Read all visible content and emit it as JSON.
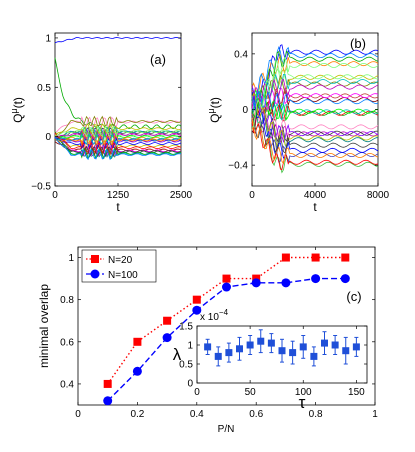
{
  "chart_data": [
    {
      "panel": "a",
      "type": "line",
      "panel_label": "(a)",
      "xlabel": "t",
      "ylabel": "Q",
      "ylabel_sup": "μ",
      "ylabel_suffix": "(t)",
      "xlim": [
        0,
        2500
      ],
      "ylim": [
        -0.5,
        1.05
      ],
      "xticks": [
        0,
        1250,
        2500
      ],
      "yticks": [
        -0.5,
        0,
        0.5,
        1
      ],
      "ytick_labels": [
        "−0.5",
        "0",
        "0.5",
        "1"
      ],
      "grid": false,
      "description_note": "many colored overlap trajectories; one (blue) rises to ~1, another (green) decays from ~0.75 to ~0.1, rest fluctuate within about -0.2..0.2",
      "series_count": 30
    },
    {
      "panel": "b",
      "type": "line",
      "panel_label": "(b)",
      "xlabel": "t",
      "ylabel": "Q",
      "ylabel_sup": "μ",
      "ylabel_suffix": "(t)",
      "xlim": [
        0,
        8000
      ],
      "ylim": [
        -0.55,
        0.55
      ],
      "xticks": [
        0,
        4000,
        8000
      ],
      "yticks": [
        -0.4,
        0,
        0.4
      ],
      "ytick_labels": [
        "−0.4",
        "0",
        "0.4"
      ],
      "grid": false,
      "series_count": 30
    },
    {
      "panel": "c",
      "type": "line",
      "panel_label": "(c)",
      "xlabel": "P/N",
      "ylabel": "minimal overlap",
      "xlim": [
        0,
        1
      ],
      "ylim": [
        0.3,
        1.05
      ],
      "xticks": [
        0,
        0.2,
        0.4,
        0.6,
        0.8,
        1
      ],
      "yticks": [
        0.4,
        0.6,
        0.8,
        1
      ],
      "legend_position": "top-left",
      "grid": false,
      "series": [
        {
          "name": "N=20",
          "color": "#ff0000",
          "marker": "square",
          "linestyle": "dotted",
          "x": [
            0.1,
            0.2,
            0.3,
            0.4,
            0.5,
            0.6,
            0.7,
            0.8,
            0.9
          ],
          "y": [
            0.4,
            0.6,
            0.7,
            0.8,
            0.9,
            0.9,
            1.0,
            1.0,
            1.0
          ]
        },
        {
          "name": "N=100",
          "color": "#0000ff",
          "marker": "circle",
          "linestyle": "dashed",
          "x": [
            0.1,
            0.2,
            0.3,
            0.4,
            0.5,
            0.6,
            0.7,
            0.8,
            0.9
          ],
          "y": [
            0.32,
            0.46,
            0.62,
            0.75,
            0.86,
            0.88,
            0.88,
            0.9,
            0.9
          ]
        }
      ],
      "inset": {
        "type": "scatter",
        "xlabel": "τ",
        "ylabel": "λ",
        "scale_label": "x 10",
        "scale_exponent": "−4",
        "xlim": [
          0,
          160
        ],
        "ylim": [
          0,
          1.5
        ],
        "xticks": [
          0,
          50,
          100,
          150
        ],
        "yticks": [
          0,
          0.5,
          1,
          1.5
        ],
        "ytick_labels": [
          "0",
          "0.5",
          "1",
          "1.5"
        ],
        "color": "#1f4fd8",
        "points": [
          {
            "x": 10,
            "y": 0.95,
            "err": 0.2
          },
          {
            "x": 20,
            "y": 0.7,
            "err": 0.25
          },
          {
            "x": 30,
            "y": 0.8,
            "err": 0.25
          },
          {
            "x": 40,
            "y": 0.9,
            "err": 0.3
          },
          {
            "x": 50,
            "y": 1.0,
            "err": 0.25
          },
          {
            "x": 60,
            "y": 1.1,
            "err": 0.3
          },
          {
            "x": 70,
            "y": 1.05,
            "err": 0.25
          },
          {
            "x": 80,
            "y": 0.85,
            "err": 0.3
          },
          {
            "x": 90,
            "y": 0.8,
            "err": 0.3
          },
          {
            "x": 100,
            "y": 0.95,
            "err": 0.3
          },
          {
            "x": 110,
            "y": 0.7,
            "err": 0.25
          },
          {
            "x": 120,
            "y": 1.05,
            "err": 0.3
          },
          {
            "x": 130,
            "y": 1.0,
            "err": 0.25
          },
          {
            "x": 140,
            "y": 0.85,
            "err": 0.35
          },
          {
            "x": 150,
            "y": 0.95,
            "err": 0.25
          }
        ]
      }
    }
  ]
}
